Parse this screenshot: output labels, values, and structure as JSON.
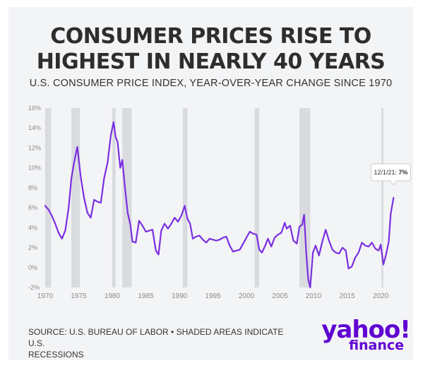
{
  "header": {
    "title_line1": "CONSUMER PRICES RISE TO",
    "title_line2": "HIGHEST IN NEARLY 40 YEARS",
    "subtitle": "U.S. CONSUMER PRICE INDEX, YEAR-OVER-YEAR CHANGE SINCE 1970"
  },
  "footer": {
    "source_line1": "SOURCE: U.S. BUREAU OF LABOR • SHADED AREAS INDICATE U.S.",
    "source_line2": "RECESSIONS",
    "logo_top": "yahoo!",
    "logo_bottom": "finance"
  },
  "chart_data": {
    "type": "line",
    "title": "",
    "xlabel": "",
    "ylabel": "",
    "xlim": [
      1969.8,
      2022.2
    ],
    "ylim": [
      -2,
      16
    ],
    "x_ticks": [
      1970,
      1975,
      1980,
      1985,
      1990,
      1995,
      2000,
      2005,
      2010,
      2015,
      2020
    ],
    "y_ticks": [
      -2,
      0,
      2,
      4,
      6,
      8,
      10,
      12,
      14,
      16
    ],
    "y_tick_labels": [
      "-2%",
      "0%",
      "2%",
      "4%",
      "6%",
      "8%",
      "10%",
      "12%",
      "14%",
      "16%"
    ],
    "grid": false,
    "colors": {
      "line": "#7b2fe0",
      "recession": "#d9dbdf",
      "callout_border": "#cccccc"
    },
    "recessions": [
      [
        1970.0,
        1970.9
      ],
      [
        1973.9,
        1975.2
      ],
      [
        1980.0,
        1980.5
      ],
      [
        1981.5,
        1982.9
      ],
      [
        1990.5,
        1991.2
      ],
      [
        2001.2,
        2001.9
      ],
      [
        2007.9,
        2009.5
      ],
      [
        2020.1,
        2020.4
      ]
    ],
    "annotation": {
      "label": "12/1/21: ",
      "value": "7%",
      "x": 2021.92,
      "y": 7.0
    },
    "series": [
      {
        "x": [
          1970.0,
          1970.5,
          1971.0,
          1971.5,
          1972.0,
          1972.5,
          1973.0,
          1973.5,
          1973.9,
          1974.3,
          1974.8,
          1975.3,
          1975.8,
          1976.3,
          1976.8,
          1977.3,
          1977.8,
          1978.3,
          1978.8,
          1979.3,
          1979.8,
          1980.2,
          1980.5,
          1980.8,
          1981.2,
          1981.5,
          1981.9,
          1982.3,
          1982.7,
          1983.0,
          1983.5,
          1984.0,
          1984.5,
          1985.0,
          1985.5,
          1986.0,
          1986.5,
          1986.9,
          1987.3,
          1987.8,
          1988.3,
          1988.8,
          1989.3,
          1989.8,
          1990.3,
          1990.8,
          1991.2,
          1991.6,
          1992.0,
          1992.5,
          1993.0,
          1993.5,
          1994.0,
          1994.5,
          1995.0,
          1995.5,
          1996.0,
          1996.5,
          1997.0,
          1997.5,
          1998.0,
          1998.5,
          1999.0,
          1999.5,
          2000.0,
          2000.5,
          2001.0,
          2001.5,
          2001.9,
          2002.3,
          2002.8,
          2003.2,
          2003.7,
          2004.2,
          2004.7,
          2005.2,
          2005.7,
          2006.0,
          2006.5,
          2007.0,
          2007.5,
          2007.9,
          2008.3,
          2008.6,
          2008.9,
          2009.2,
          2009.5,
          2009.9,
          2010.3,
          2010.8,
          2011.3,
          2011.8,
          2012.3,
          2012.8,
          2013.3,
          2013.8,
          2014.3,
          2014.8,
          2015.2,
          2015.7,
          2016.2,
          2016.7,
          2017.2,
          2017.7,
          2018.2,
          2018.7,
          2019.2,
          2019.7,
          2020.0,
          2020.4,
          2020.8,
          2021.2,
          2021.5,
          2021.92
        ],
        "y": [
          6.2,
          5.8,
          5.2,
          4.4,
          3.5,
          2.9,
          3.7,
          6.0,
          8.9,
          10.5,
          12.1,
          9.1,
          7.0,
          5.5,
          5.0,
          6.8,
          6.6,
          6.5,
          9.0,
          10.5,
          13.3,
          14.6,
          13.1,
          12.6,
          10.0,
          10.8,
          8.0,
          5.5,
          4.3,
          2.6,
          2.5,
          4.7,
          4.2,
          3.6,
          3.7,
          3.8,
          1.7,
          1.3,
          3.7,
          4.4,
          3.9,
          4.4,
          5.0,
          4.6,
          5.2,
          6.2,
          4.9,
          4.4,
          2.9,
          3.1,
          3.2,
          2.8,
          2.5,
          2.9,
          2.8,
          2.7,
          2.8,
          3.0,
          3.1,
          2.2,
          1.6,
          1.7,
          1.8,
          2.4,
          3.0,
          3.6,
          3.4,
          3.3,
          1.8,
          1.5,
          2.2,
          2.9,
          2.1,
          3.0,
          3.3,
          3.5,
          4.5,
          3.9,
          4.2,
          2.7,
          2.4,
          4.1,
          4.3,
          5.3,
          1.5,
          -1.2,
          -2.0,
          1.5,
          2.2,
          1.2,
          2.6,
          3.8,
          2.7,
          1.8,
          1.5,
          1.4,
          2.0,
          1.7,
          -0.1,
          0.1,
          1.0,
          1.5,
          2.5,
          2.2,
          2.1,
          2.5,
          1.9,
          1.7,
          2.3,
          0.3,
          1.3,
          2.6,
          5.4,
          7.0
        ]
      }
    ]
  }
}
